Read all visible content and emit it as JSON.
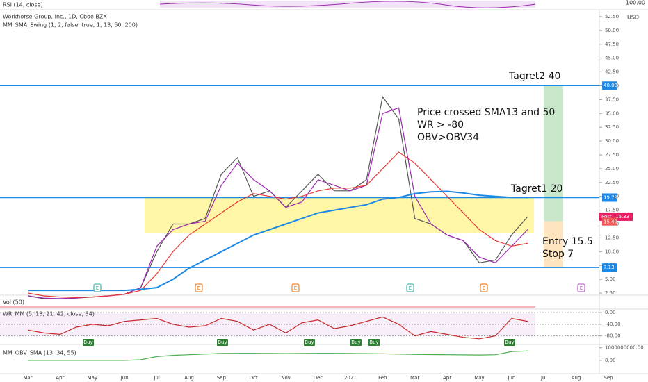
{
  "chart_data": [
    {
      "type": "line",
      "title": "Workhorse Group, Inc., 1D, Cboe BZX",
      "subtitle": "MM_SMA_Swing (1, 2, false, true, 1, 13, 50, 200)",
      "unit": "USD",
      "categories": [
        "Mar",
        null,
        "Apr",
        null,
        "May",
        null,
        "Jun",
        null,
        "Jul",
        null,
        "Aug",
        null,
        "Sep",
        null,
        "Oct",
        null,
        "Nov",
        null,
        "Dec",
        null,
        "2021",
        null,
        "Feb",
        null,
        "Mar",
        null,
        "Apr",
        null,
        "May",
        null,
        "Jun",
        null,
        "Jul",
        null,
        "Aug",
        null,
        "Sep"
      ],
      "series": [
        {
          "color": "#555555",
          "values": [
            2,
            1.5,
            1.5,
            1.6,
            1.8,
            2.0,
            2.3,
            3.5,
            10,
            15,
            15,
            16,
            24,
            27,
            20,
            21,
            18,
            21,
            24,
            21,
            21,
            23,
            38,
            34,
            16,
            15,
            13,
            12,
            8,
            8.5,
            13,
            16.33,
            null,
            null,
            null,
            null,
            null
          ]
        },
        {
          "color": "#9c27b0",
          "values": [
            2,
            1.6,
            1.5,
            1.6,
            1.8,
            2.0,
            2.3,
            3.5,
            11,
            14,
            15,
            15.5,
            22,
            26,
            23,
            21,
            18,
            19,
            23,
            22,
            21,
            22,
            35,
            36,
            20,
            15,
            13,
            12,
            9,
            8,
            11,
            14,
            null,
            null,
            null,
            null,
            null
          ]
        },
        {
          "color": "#e53935",
          "values": [
            2.5,
            2,
            1.8,
            1.7,
            1.8,
            2,
            2.3,
            3,
            6,
            10,
            13,
            15,
            17,
            19,
            20.5,
            20,
            19.5,
            20,
            21,
            21.5,
            21.5,
            22,
            25,
            28,
            26,
            23,
            20,
            17,
            14,
            12,
            11,
            11.5,
            null,
            null,
            null,
            null,
            null
          ]
        },
        {
          "color": "#1e88e5",
          "values": [
            3,
            3,
            3,
            3,
            3,
            3,
            3,
            3.2,
            3.5,
            5,
            7,
            8.5,
            10,
            11.5,
            13,
            14,
            15,
            16,
            17,
            17.5,
            18,
            18.5,
            19.5,
            19.8,
            20.5,
            20.8,
            20.9,
            20.6,
            20.2,
            20,
            19.8,
            19.8,
            null,
            null,
            null,
            null,
            null
          ]
        }
      ],
      "ylim": [
        1.25,
        53.75
      ],
      "yticks": [
        {
          "value": 2.5,
          "label": "2.50"
        },
        {
          "value": 5,
          "label": "5.00"
        },
        {
          "value": 7.5,
          "label": "7.50"
        },
        {
          "value": 10,
          "label": "10.00"
        },
        {
          "value": 12.5,
          "label": "12.50"
        },
        {
          "value": 15,
          "label": "15.00"
        },
        {
          "value": 17.5,
          "label": "17.50"
        },
        {
          "value": 20,
          "label": "20.00"
        },
        {
          "value": 22.5,
          "label": "22.50"
        },
        {
          "value": 25,
          "label": "25.00"
        },
        {
          "value": 27.5,
          "label": "27.50"
        },
        {
          "value": 30,
          "label": "30.00"
        },
        {
          "value": 32.5,
          "label": "32.50"
        },
        {
          "value": 35,
          "label": "35.00"
        },
        {
          "value": 37.5,
          "label": "37.50"
        },
        {
          "value": 40,
          "label": "40.00"
        },
        {
          "value": 42.5,
          "label": "42.50"
        },
        {
          "value": 45,
          "label": "45.00"
        },
        {
          "value": 47.5,
          "label": "47.50"
        },
        {
          "value": 50,
          "label": "50.00"
        },
        {
          "value": 52.5,
          "label": "52.50"
        }
      ],
      "levels": [
        40.03,
        19.78,
        7.13
      ],
      "level_color": "#1e88e5",
      "highlight_zone": [
        13.3,
        19.78
      ],
      "target_zone": [
        15.5,
        40.03
      ],
      "stop_zone": [
        7.13,
        15.5
      ],
      "post_label": "Post",
      "last_price": 16.33,
      "entry_marker": 15.49,
      "annotations": [
        "Tagret2 40",
        "Tagret1 20",
        "Price crossed SMA13 and 50",
        "WR > -80",
        "OBV>OBV34",
        "Entry 15.5",
        "Stop 7"
      ],
      "earnings_markers": [
        "E",
        "E",
        "E",
        "E",
        "E",
        "E"
      ]
    },
    {
      "type": "line",
      "title": "WR_MM (5, 13, 21, 42, close, 34)",
      "series": [
        {
          "color": "#c62828",
          "values": [
            -60,
            -70,
            -75,
            -50,
            -40,
            -45,
            -30,
            -25,
            -20,
            -40,
            -50,
            -45,
            -20,
            -30,
            -60,
            -40,
            -70,
            -35,
            -25,
            -55,
            -45,
            -30,
            -15,
            -40,
            -80,
            -65,
            -75,
            -85,
            -90,
            -80,
            -20,
            -30,
            null,
            null,
            null,
            null,
            null
          ]
        }
      ],
      "ylim": [
        -100,
        5
      ],
      "yticks": [
        {
          "value": 0,
          "label": "0.00"
        },
        {
          "value": -40,
          "label": "-40.00"
        },
        {
          "value": -80,
          "label": "-80.00"
        }
      ],
      "buy_labels": [
        "Buy",
        "Buy",
        "Buy",
        "Buy",
        "Buy",
        "Buy"
      ]
    },
    {
      "type": "line",
      "title": "MM_OBV_SMA (13, 34, 55)",
      "series": [
        {
          "color": "#4caf50",
          "values": [
            0,
            0,
            0,
            0,
            0,
            0,
            0,
            50000000,
            300000000,
            400000000,
            450000000,
            500000000,
            550000000,
            560000000,
            560000000,
            550000000,
            540000000,
            550000000,
            560000000,
            560000000,
            550000000,
            540000000,
            520000000,
            500000000,
            470000000,
            460000000,
            450000000,
            440000000,
            430000000,
            450000000,
            700000000,
            750000000,
            null,
            null,
            null,
            null,
            null
          ]
        }
      ],
      "ylim": [
        -1000000000,
        1150000000
      ],
      "yticks": [
        {
          "value": 1000000000,
          "label": "1000000000.00"
        },
        {
          "value": 0,
          "label": "0.00"
        }
      ]
    }
  ],
  "rsi": {
    "title": "RSI (14, close)",
    "yticks": [
      {
        "value": 100,
        "label": "100.00"
      }
    ]
  },
  "volume": {
    "title": "Vol (50)"
  }
}
